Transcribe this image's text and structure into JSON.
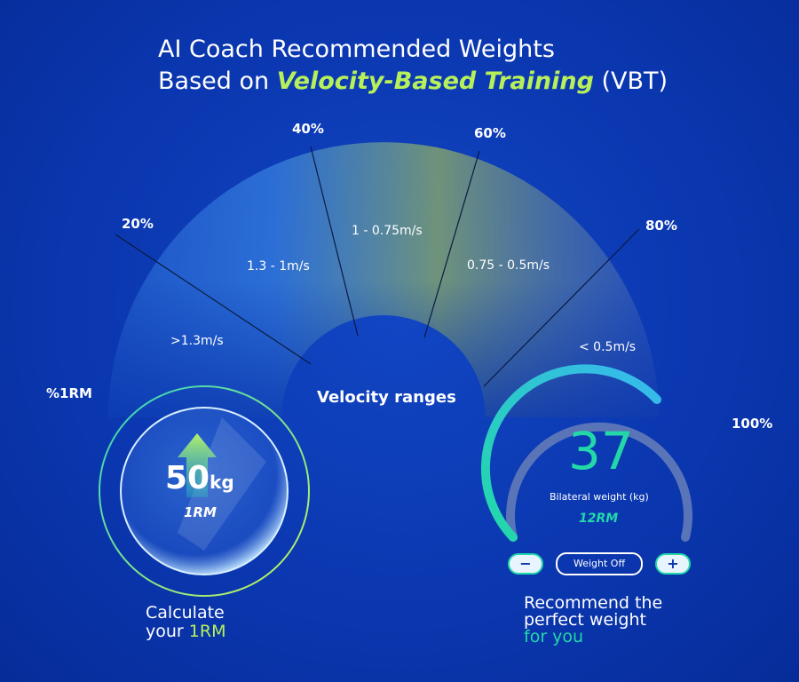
{
  "title": {
    "line1": "AI Coach Recommended Weights",
    "line2": [
      "Based on",
      "Velocity-Based Training",
      "(VBT)"
    ]
  },
  "gauge": {
    "axis_label": "%1RM",
    "percents": [
      "20%",
      "40%",
      "60%",
      "80%",
      "100%"
    ],
    "ranges": [
      ">1.3m/s",
      "1.3 - 1m/s",
      "1 - 0.75m/s",
      "0.75 - 0.5m/s",
      "< 0.5m/s"
    ],
    "center_label": "Velocity ranges"
  },
  "left_widget": {
    "value": "50",
    "unit": "kg",
    "subtitle": "1RM",
    "caption": [
      "Calculate",
      "your",
      "1RM"
    ]
  },
  "right_widget": {
    "value": "37",
    "label": "Bilateral weight (kg)",
    "subtitle": "12RM",
    "buttons": [
      "−",
      "Weight Off",
      "+"
    ],
    "caption": [
      "Recommend the",
      "perfect weight",
      "for you"
    ]
  }
}
